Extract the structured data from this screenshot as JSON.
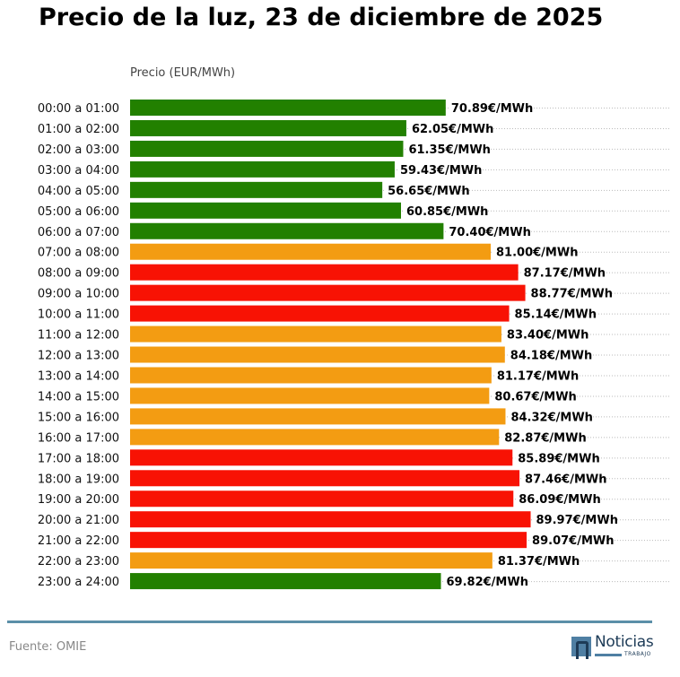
{
  "title": "Precio de la luz, 23 de diciembre de 2025",
  "source": "Fuente: OMIE",
  "logo": {
    "text": "Noticias",
    "sub": "TRABAJO"
  },
  "colors": {
    "low": "#228000",
    "mid": "#f39c12",
    "high": "#f81204",
    "rule": "#5b8fa8"
  },
  "chart_data": {
    "type": "bar",
    "orientation": "horizontal",
    "title": "Precio de la luz, 23 de diciembre de 2025",
    "xlabel": "Precio (EUR/MWh)",
    "ylabel": "",
    "xlim": [
      0,
      121.5
    ],
    "grid": "dotted horizontal per row",
    "value_suffix": "€/MWh",
    "categories": [
      "00:00 a 01:00",
      "01:00 a 02:00",
      "02:00 a 03:00",
      "03:00 a 04:00",
      "04:00 a 05:00",
      "05:00 a 06:00",
      "06:00 a 07:00",
      "07:00 a 08:00",
      "08:00 a 09:00",
      "09:00 a 10:00",
      "10:00 a 11:00",
      "11:00 a 12:00",
      "12:00 a 13:00",
      "13:00 a 14:00",
      "14:00 a 15:00",
      "15:00 a 16:00",
      "16:00 a 17:00",
      "17:00 a 18:00",
      "18:00 a 19:00",
      "19:00 a 20:00",
      "20:00 a 21:00",
      "21:00 a 22:00",
      "22:00 a 23:00",
      "23:00 a 24:00"
    ],
    "values": [
      70.89,
      62.05,
      61.35,
      59.43,
      56.65,
      60.85,
      70.4,
      81.0,
      87.17,
      88.77,
      85.14,
      83.4,
      84.18,
      81.17,
      80.67,
      84.32,
      82.87,
      85.89,
      87.46,
      86.09,
      89.97,
      89.07,
      81.37,
      69.82
    ],
    "labels": [
      "70.89€/MWh",
      "62.05€/MWh",
      "61.35€/MWh",
      "59.43€/MWh",
      "56.65€/MWh",
      "60.85€/MWh",
      "70.40€/MWh",
      "81.00€/MWh",
      "87.17€/MWh",
      "88.77€/MWh",
      "85.14€/MWh",
      "83.40€/MWh",
      "84.18€/MWh",
      "81.17€/MWh",
      "80.67€/MWh",
      "84.32€/MWh",
      "82.87€/MWh",
      "85.89€/MWh",
      "87.46€/MWh",
      "86.09€/MWh",
      "89.97€/MWh",
      "89.07€/MWh",
      "81.37€/MWh",
      "69.82€/MWh"
    ],
    "levels": [
      "low",
      "low",
      "low",
      "low",
      "low",
      "low",
      "low",
      "mid",
      "high",
      "high",
      "high",
      "mid",
      "mid",
      "mid",
      "mid",
      "mid",
      "mid",
      "high",
      "high",
      "high",
      "high",
      "high",
      "mid",
      "low"
    ]
  }
}
